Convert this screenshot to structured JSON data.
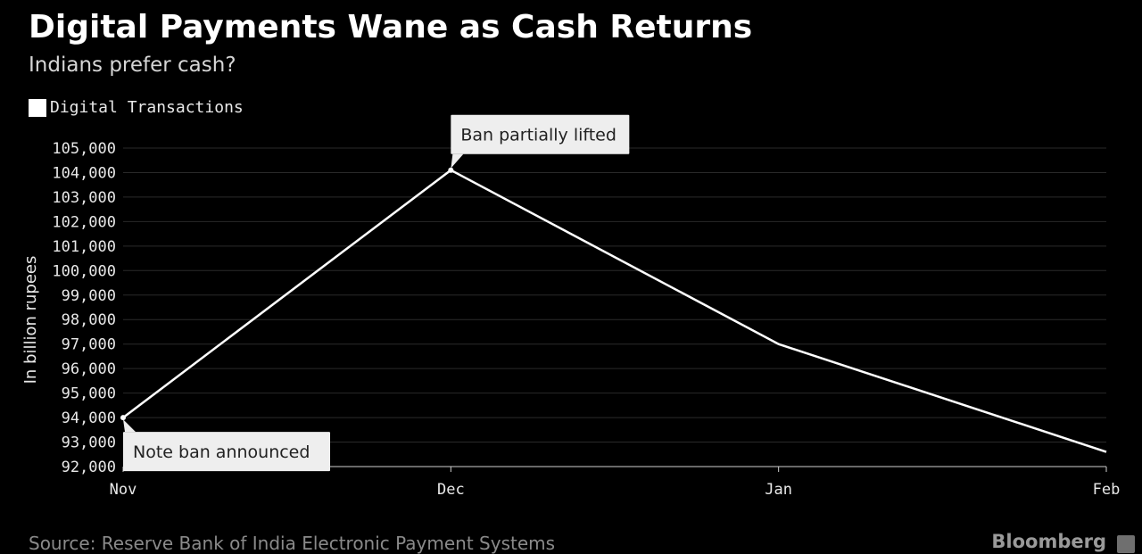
{
  "chart_data": {
    "type": "line",
    "title": "Digital Payments Wane as Cash Returns",
    "subtitle": "Indians prefer cash?",
    "ylabel": "In billion rupees",
    "xlabel": "",
    "categories": [
      "Nov",
      "Dec",
      "Jan",
      "Feb"
    ],
    "ylim": [
      92000,
      105000
    ],
    "yticks": [
      105000,
      104000,
      103000,
      102000,
      101000,
      100000,
      99000,
      98000,
      97000,
      96000,
      95000,
      94000,
      93000,
      92000
    ],
    "ytick_labels": [
      "105,000",
      "104,000",
      "103,000",
      "102,000",
      "101,000",
      "100,000",
      "99,000",
      "98,000",
      "97,000",
      "96,000",
      "95,000",
      "94,000",
      "93,000",
      "92,000"
    ],
    "series": [
      {
        "name": "Digital Transactions",
        "values": [
          94000,
          104100,
          97000,
          92600
        ],
        "color": "#ffffff"
      }
    ],
    "legend_placement": "top-left",
    "grid": true,
    "annotations": [
      {
        "text": "Note ban announced",
        "category": "Nov",
        "value": 94000
      },
      {
        "text": "Ban partially lifted",
        "category": "Dec",
        "value": 104100
      }
    ]
  },
  "footer": {
    "source": "Source: Reserve Bank of India Electronic Payment Systems",
    "brand": "Bloomberg"
  },
  "colors": {
    "background": "#000000",
    "line": "#ffffff",
    "grid": "#2a2a2a",
    "callout": "#eeeeee"
  }
}
